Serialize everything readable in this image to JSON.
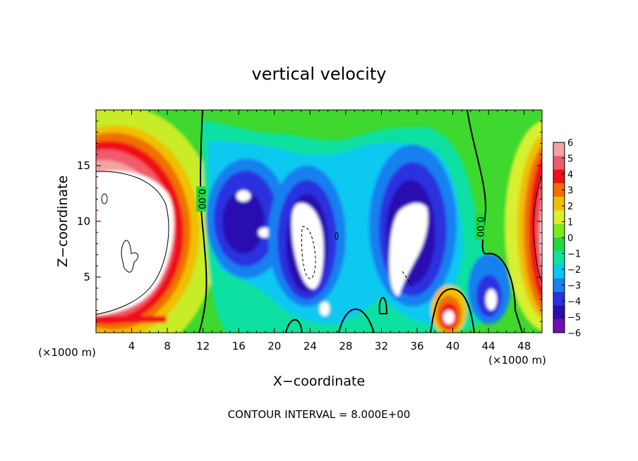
{
  "chart_data": {
    "type": "heatmap",
    "title": "vertical velocity",
    "xlabel": "X−coordinate",
    "ylabel": "Z−coordinate",
    "x_unit_left": "(×1000 m)",
    "x_unit_right": "(×1000 m)",
    "footer": "CONTOUR INTERVAL = 8.000E+00",
    "xlim": [
      0,
      50
    ],
    "ylim": [
      0,
      20
    ],
    "xticks": [
      4,
      8,
      12,
      16,
      20,
      24,
      28,
      32,
      36,
      40,
      44,
      48
    ],
    "yticks": [
      5,
      10,
      15
    ],
    "colorbar": {
      "range": [
        -6,
        6
      ],
      "labels": [
        "6",
        "5",
        "4",
        "3",
        "2",
        "1",
        "0",
        "−1",
        "−2",
        "−3",
        "−4",
        "−5",
        "−6"
      ],
      "colors": [
        "#f4a3a3",
        "#f05c6c",
        "#f01018",
        "#f07000",
        "#f0c000",
        "#d8f030",
        "#7ce818",
        "#20d840",
        "#10e0a0",
        "#08c8f0",
        "#1880f0",
        "#2a30e0",
        "#2a10b0",
        "#7010b0"
      ]
    },
    "contour_labels": [
      {
        "text": "0.00",
        "x": 11.8,
        "y": 12
      },
      {
        "text": "0.00",
        "x": 43.0,
        "y": 9.5
      }
    ],
    "features": [
      {
        "name": "left updraft",
        "x": 4.5,
        "z": 9,
        "sign": "positive",
        "peak": ">6"
      },
      {
        "name": "downdraft 1",
        "x": 17.5,
        "z": 9,
        "sign": "negative",
        "peak": "<-6"
      },
      {
        "name": "downdraft 2",
        "x": 24,
        "z": 8,
        "sign": "negative",
        "peak": "<-6"
      },
      {
        "name": "downdraft 3",
        "x": 35,
        "z": 9,
        "sign": "negative",
        "peak": "<-6"
      },
      {
        "name": "low-level updraft",
        "x": 39.5,
        "z": 1.5,
        "sign": "positive",
        "peak": ">6"
      },
      {
        "name": "downdraft 4",
        "x": 44,
        "z": 3,
        "sign": "negative",
        "peak": "<-6"
      },
      {
        "name": "right updraft",
        "x": 49.5,
        "z": 10,
        "sign": "positive",
        "peak": ">6"
      }
    ]
  }
}
